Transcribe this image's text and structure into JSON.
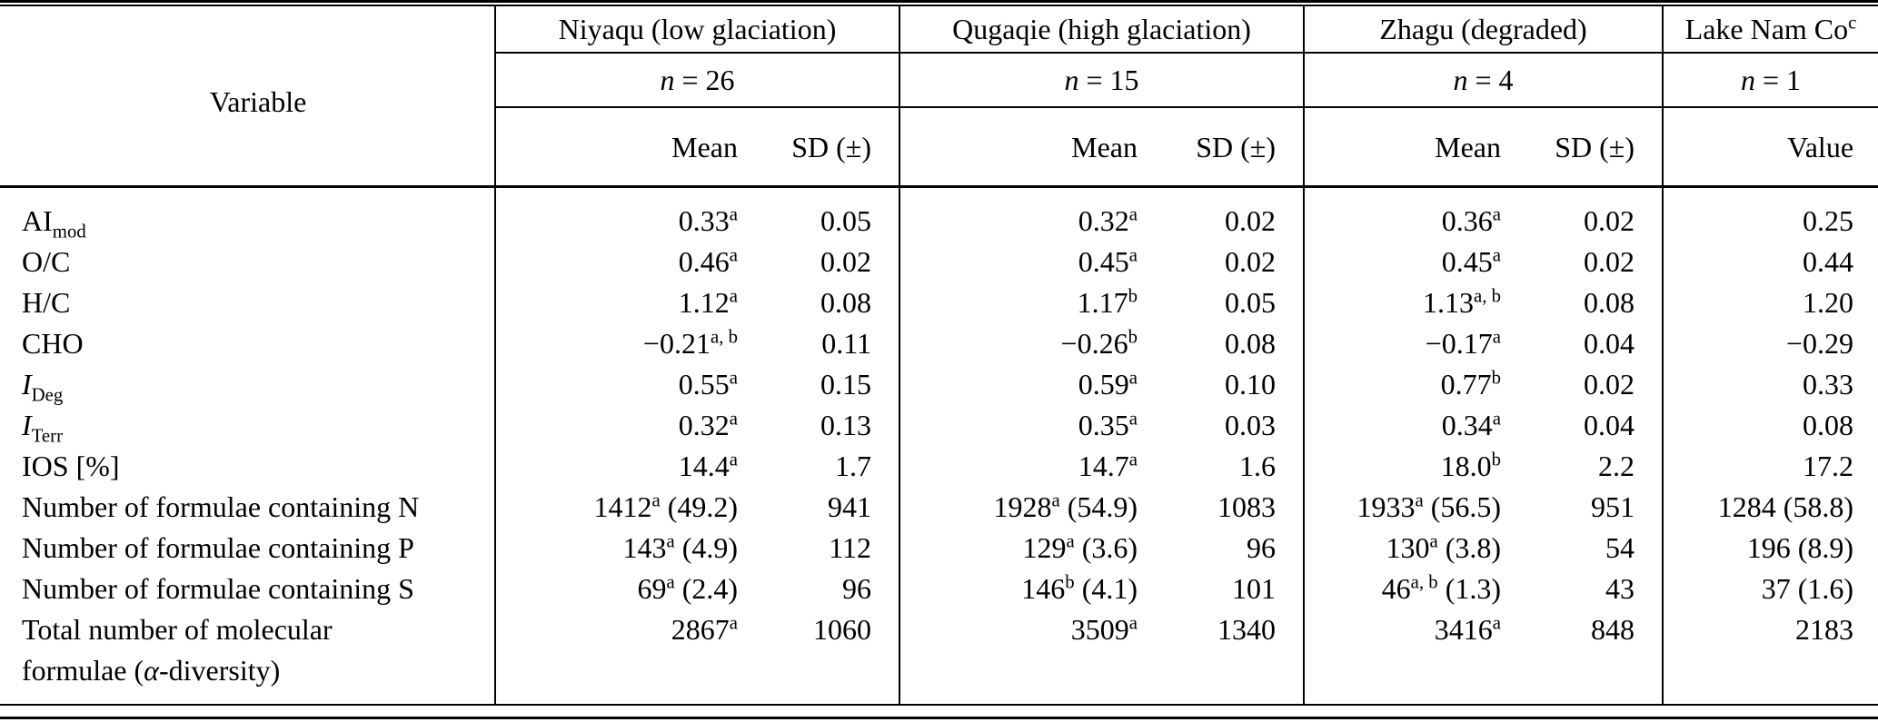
{
  "table": {
    "header": {
      "variable_label": "Variable",
      "groups": [
        {
          "label": "Niyaqu (low glaciation)",
          "n_var": "n",
          "n_rest": " = 26",
          "mean_label": "Mean",
          "sd_label": "SD (±)"
        },
        {
          "label": "Qugaqie (high glaciation)",
          "n_var": "n",
          "n_rest": " = 15",
          "mean_label": "Mean",
          "sd_label": "SD (±)"
        },
        {
          "label": "Zhagu (degraded)",
          "n_var": "n",
          "n_rest": " = 4",
          "mean_label": "Mean",
          "sd_label": "SD (±)"
        }
      ],
      "value_group": {
        "label": "Lake Nam Co",
        "sup": "c",
        "n_var": "n",
        "n_rest": " = 1",
        "col_label": "Value"
      }
    },
    "rows": [
      {
        "label": [
          {
            "t": "AI"
          },
          {
            "t": "mod",
            "s": "sub"
          }
        ],
        "cells": [
          {
            "v": "0.33",
            "sup": "a"
          },
          {
            "v": "0.05"
          },
          {
            "v": "0.32",
            "sup": "a"
          },
          {
            "v": "0.02"
          },
          {
            "v": "0.36",
            "sup": "a"
          },
          {
            "v": "0.02"
          },
          {
            "v": "0.25"
          }
        ]
      },
      {
        "label": [
          {
            "t": "O/C"
          }
        ],
        "cells": [
          {
            "v": "0.46",
            "sup": "a"
          },
          {
            "v": "0.02"
          },
          {
            "v": "0.45",
            "sup": "a"
          },
          {
            "v": "0.02"
          },
          {
            "v": "0.45",
            "sup": "a"
          },
          {
            "v": "0.02"
          },
          {
            "v": "0.44"
          }
        ]
      },
      {
        "label": [
          {
            "t": "H/C"
          }
        ],
        "cells": [
          {
            "v": "1.12",
            "sup": "a"
          },
          {
            "v": "0.08"
          },
          {
            "v": "1.17",
            "sup": "b"
          },
          {
            "v": "0.05"
          },
          {
            "v": "1.13",
            "sup": "a, b"
          },
          {
            "v": "0.08"
          },
          {
            "v": "1.20"
          }
        ]
      },
      {
        "label": [
          {
            "t": "CHO"
          }
        ],
        "cells": [
          {
            "v": "−0.21",
            "sup": "a, b"
          },
          {
            "v": "0.11"
          },
          {
            "v": "−0.26",
            "sup": "b"
          },
          {
            "v": "0.08"
          },
          {
            "v": "−0.17",
            "sup": "a"
          },
          {
            "v": "0.04"
          },
          {
            "v": "−0.29"
          }
        ]
      },
      {
        "label": [
          {
            "t": "I",
            "s": "it"
          },
          {
            "t": "Deg",
            "s": "sub"
          }
        ],
        "cells": [
          {
            "v": "0.55",
            "sup": "a"
          },
          {
            "v": "0.15"
          },
          {
            "v": "0.59",
            "sup": "a"
          },
          {
            "v": "0.10"
          },
          {
            "v": "0.77",
            "sup": "b"
          },
          {
            "v": "0.02"
          },
          {
            "v": "0.33"
          }
        ]
      },
      {
        "label": [
          {
            "t": "I",
            "s": "it"
          },
          {
            "t": "Terr",
            "s": "sub"
          }
        ],
        "cells": [
          {
            "v": "0.32",
            "sup": "a"
          },
          {
            "v": "0.13"
          },
          {
            "v": "0.35",
            "sup": "a"
          },
          {
            "v": "0.03"
          },
          {
            "v": "0.34",
            "sup": "a"
          },
          {
            "v": "0.04"
          },
          {
            "v": "0.08"
          }
        ]
      },
      {
        "label": [
          {
            "t": "IOS [%]"
          }
        ],
        "cells": [
          {
            "v": "14.4",
            "sup": "a"
          },
          {
            "v": "1.7"
          },
          {
            "v": "14.7",
            "sup": "a"
          },
          {
            "v": "1.6"
          },
          {
            "v": "18.0",
            "sup": "b"
          },
          {
            "v": "2.2"
          },
          {
            "v": "17.2"
          }
        ]
      },
      {
        "label": [
          {
            "t": "Number of formulae containing N"
          }
        ],
        "cells": [
          {
            "v": "1412",
            "sup": "a",
            "paren": "(49.2)"
          },
          {
            "v": "941"
          },
          {
            "v": "1928",
            "sup": "a",
            "paren": "(54.9)"
          },
          {
            "v": "1083"
          },
          {
            "v": "1933",
            "sup": "a",
            "paren": "(56.5)"
          },
          {
            "v": "951"
          },
          {
            "v": "1284",
            "paren": "(58.8)"
          }
        ]
      },
      {
        "label": [
          {
            "t": "Number of formulae containing P"
          }
        ],
        "cells": [
          {
            "v": "143",
            "sup": "a",
            "paren": "(4.9)"
          },
          {
            "v": "112"
          },
          {
            "v": "129",
            "sup": "a",
            "paren": "(3.6)"
          },
          {
            "v": "96"
          },
          {
            "v": "130",
            "sup": "a",
            "paren": "(3.8)"
          },
          {
            "v": "54"
          },
          {
            "v": "196",
            "paren": "(8.9)"
          }
        ]
      },
      {
        "label": [
          {
            "t": "Number of formulae containing S"
          }
        ],
        "cells": [
          {
            "v": "69",
            "sup": "a",
            "paren": "(2.4)"
          },
          {
            "v": "96"
          },
          {
            "v": "146",
            "sup": "b",
            "paren": "(4.1)"
          },
          {
            "v": "101"
          },
          {
            "v": "46",
            "sup": "a, b",
            "paren": "(1.3)"
          },
          {
            "v": "43"
          },
          {
            "v": "37",
            "paren": "(1.6)"
          }
        ]
      },
      {
        "label": [
          {
            "t": "Total number of molecular"
          },
          {
            "s": "br"
          },
          {
            "t": "formulae ("
          },
          {
            "t": "α",
            "s": "it"
          },
          {
            "t": "-diversity)"
          }
        ],
        "cells": [
          {
            "v": "2867",
            "sup": "a"
          },
          {
            "v": "1060"
          },
          {
            "v": "3509",
            "sup": "a"
          },
          {
            "v": "1340"
          },
          {
            "v": "3416",
            "sup": "a"
          },
          {
            "v": "848"
          },
          {
            "v": "2183"
          }
        ]
      }
    ]
  }
}
